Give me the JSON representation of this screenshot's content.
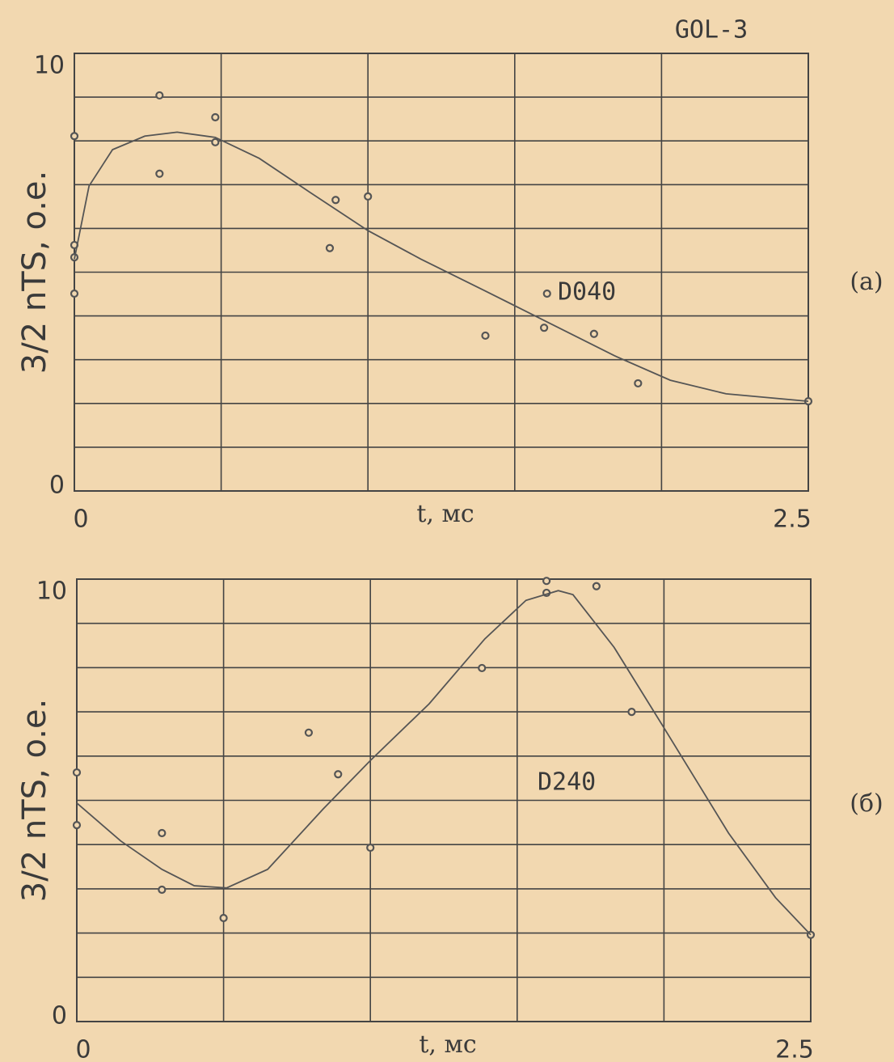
{
  "header": "GOL-3",
  "chart_data": [
    {
      "type": "scatter",
      "panel_label": "(a)",
      "annotation": "D040",
      "xlabel": "t, мс",
      "ylabel": "3/2 nTS, o.e.",
      "xlim": [
        0,
        2.5
      ],
      "xticks": [
        0,
        2.5
      ],
      "ylim": [
        0,
        10
      ],
      "yticks": [
        0,
        10
      ],
      "xgrid": [
        0,
        0.5,
        1,
        1.5,
        2,
        2.5
      ],
      "ygrid": [
        0,
        1,
        2,
        3,
        4,
        5,
        6,
        7,
        8,
        9,
        10
      ],
      "series": [
        {
          "style": "points",
          "color": "#555555",
          "x": [
            0,
            0,
            0,
            0,
            0.29,
            0.29,
            0.48,
            0.48,
            0.87,
            0.89,
            1.0,
            1.4,
            1.6,
            1.61,
            1.77,
            1.92,
            2.5
          ],
          "values": [
            8.11,
            5.62,
            5.34,
            4.51,
            9.04,
            7.25,
            8.54,
            7.97,
            5.55,
            6.65,
            6.73,
            3.55,
            3.73,
            4.51,
            3.59,
            2.46,
            2.05
          ]
        },
        {
          "style": "line",
          "color": "#555555",
          "x": [
            0,
            0.05,
            0.13,
            0.24,
            0.35,
            0.48,
            0.63,
            0.79,
            1.0,
            1.18,
            1.4,
            1.62,
            1.84,
            2.03,
            2.22,
            2.5
          ],
          "values": [
            5.3,
            6.97,
            7.8,
            8.11,
            8.2,
            8.08,
            7.6,
            6.88,
            5.95,
            5.3,
            4.57,
            3.83,
            3.09,
            2.53,
            2.22,
            2.05
          ]
        }
      ]
    },
    {
      "type": "scatter",
      "panel_label": "(б)",
      "annotation": "D240",
      "xlabel": "t, мс",
      "ylabel": "3/2 nTS, o.e.",
      "xlim": [
        0,
        2.5
      ],
      "xticks": [
        0,
        2.5
      ],
      "ylim": [
        0,
        10
      ],
      "yticks": [
        0,
        10
      ],
      "xgrid": [
        0,
        0.5,
        1,
        1.5,
        2,
        2.5
      ],
      "ygrid": [
        0,
        1,
        2,
        3,
        4,
        5,
        6,
        7,
        8,
        9,
        10
      ],
      "series": [
        {
          "style": "points",
          "color": "#555555",
          "x": [
            0,
            0,
            0.29,
            0.29,
            0.5,
            0.79,
            0.89,
            1.0,
            1.38,
            1.6,
            1.6,
            1.77,
            1.89,
            2.5
          ],
          "values": [
            5.63,
            4.44,
            4.26,
            2.98,
            2.34,
            6.53,
            5.59,
            3.93,
            7.99,
            9.96,
            9.69,
            9.84,
            7.0,
            1.96
          ]
        },
        {
          "style": "line",
          "color": "#555555",
          "x": [
            0,
            0.15,
            0.29,
            0.4,
            0.51,
            0.65,
            0.84,
            1.0,
            1.2,
            1.39,
            1.53,
            1.64,
            1.69,
            1.83,
            2.0,
            2.22,
            2.38,
            2.5
          ],
          "values": [
            4.94,
            4.08,
            3.44,
            3.07,
            3.02,
            3.44,
            4.81,
            5.9,
            7.18,
            8.65,
            9.52,
            9.74,
            9.65,
            8.46,
            6.64,
            4.26,
            2.8,
            1.96
          ]
        }
      ]
    }
  ]
}
